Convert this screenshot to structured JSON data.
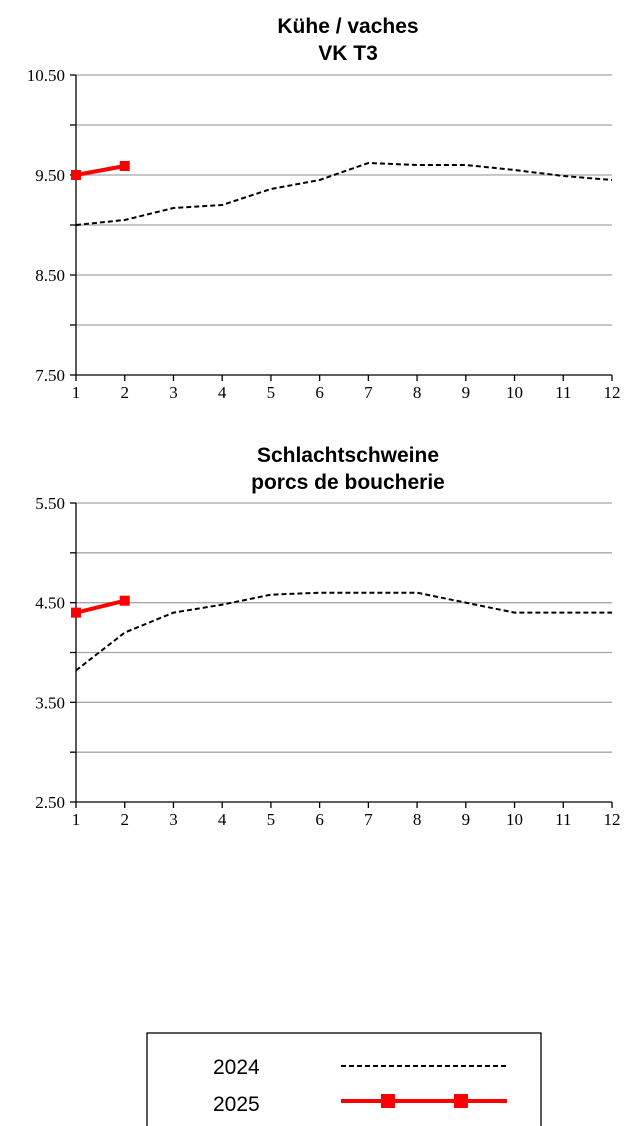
{
  "chart_data": [
    {
      "type": "line",
      "title": [
        "Kühe / vaches",
        "VK T3"
      ],
      "xlabel": "",
      "ylabel": "",
      "x": [
        1,
        2,
        3,
        4,
        5,
        6,
        7,
        8,
        9,
        10,
        11,
        12
      ],
      "x_tick_labels": [
        "1",
        "2",
        "3",
        "4",
        "5",
        "6",
        "7",
        "8",
        "9",
        "10",
        "11",
        "12"
      ],
      "ylim": [
        7.5,
        10.5
      ],
      "y_tick_labels": [
        "7.50",
        "8.50",
        "9.50",
        "10.50"
      ],
      "grid": true,
      "series": [
        {
          "name": "2024",
          "x": [
            1,
            2,
            3,
            4,
            5,
            6,
            7,
            8,
            9,
            10,
            11,
            12
          ],
          "values": [
            9.0,
            9.05,
            9.17,
            9.2,
            9.36,
            9.45,
            9.62,
            9.6,
            9.6,
            9.55,
            9.49,
            9.45
          ]
        },
        {
          "name": "2025",
          "x": [
            1,
            2
          ],
          "values": [
            9.5,
            9.59
          ]
        }
      ]
    },
    {
      "type": "line",
      "title": [
        "Schlachtschweine",
        "porcs de boucherie"
      ],
      "xlabel": "",
      "ylabel": "",
      "x": [
        1,
        2,
        3,
        4,
        5,
        6,
        7,
        8,
        9,
        10,
        11,
        12
      ],
      "x_tick_labels": [
        "1",
        "2",
        "3",
        "4",
        "5",
        "6",
        "7",
        "8",
        "9",
        "10",
        "11",
        "12"
      ],
      "ylim": [
        2.5,
        5.5
      ],
      "y_tick_labels": [
        "2.50",
        "3.50",
        "4.50",
        "5.50"
      ],
      "grid": true,
      "series": [
        {
          "name": "2024",
          "x": [
            1,
            2,
            3,
            4,
            5,
            6,
            7,
            8,
            9,
            10,
            11,
            12
          ],
          "values": [
            3.82,
            4.2,
            4.4,
            4.48,
            4.58,
            4.6,
            4.6,
            4.6,
            4.5,
            4.4,
            4.4,
            4.4
          ]
        },
        {
          "name": "2025",
          "x": [
            1,
            2
          ],
          "values": [
            4.4,
            4.52
          ]
        }
      ]
    }
  ],
  "legend": {
    "placement": "bottom-center",
    "items": [
      {
        "label": "2024",
        "style": "dashed",
        "color": "#000000"
      },
      {
        "label": "2025",
        "style": "solid-square-markers",
        "color": "#ff0000"
      }
    ]
  }
}
